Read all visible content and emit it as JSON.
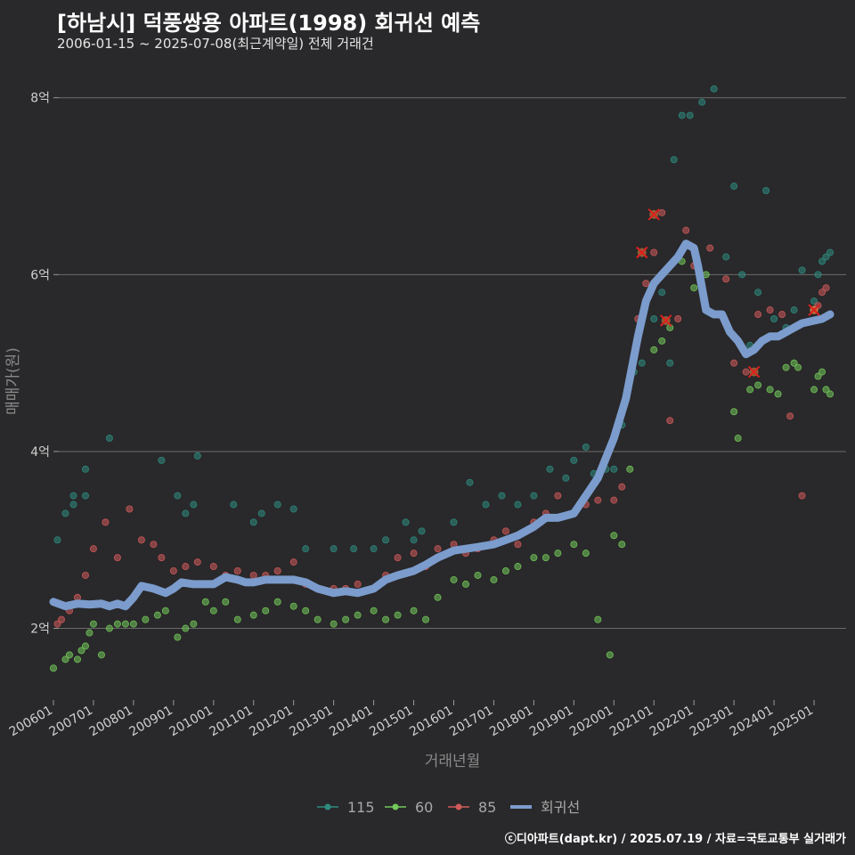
{
  "header": {
    "title": "[하남시] 덕풍쌍용 아파트(1998) 회귀선 예측",
    "subtitle": "2006-01-15 ~ 2025-07-08(최근계약일) 전체 거래건"
  },
  "credit": "ⓒ디아파트(dapt.kr) / 2025.07.19 / 자료=국토교통부 실거래가",
  "chart_data": {
    "type": "scatter",
    "title": "[하남시] 덕풍쌍용 아파트(1998) 회귀선 예측",
    "xlabel": "거래년월",
    "ylabel": "매매가(원)",
    "xlim": [
      2006.0,
      2025.8
    ],
    "ylim": [
      1.2,
      8.4
    ],
    "x_ticks": [
      {
        "value": 2006.0,
        "label": "200601"
      },
      {
        "value": 2007.0,
        "label": "200701"
      },
      {
        "value": 2008.0,
        "label": "200801"
      },
      {
        "value": 2009.0,
        "label": "200901"
      },
      {
        "value": 2010.0,
        "label": "201001"
      },
      {
        "value": 2011.0,
        "label": "201101"
      },
      {
        "value": 2012.0,
        "label": "201201"
      },
      {
        "value": 2013.0,
        "label": "201301"
      },
      {
        "value": 2014.0,
        "label": "201401"
      },
      {
        "value": 2015.0,
        "label": "201501"
      },
      {
        "value": 2016.0,
        "label": "201601"
      },
      {
        "value": 2017.0,
        "label": "201701"
      },
      {
        "value": 2018.0,
        "label": "201801"
      },
      {
        "value": 2019.0,
        "label": "201901"
      },
      {
        "value": 2020.0,
        "label": "202001"
      },
      {
        "value": 2021.0,
        "label": "202101"
      },
      {
        "value": 2022.0,
        "label": "202201"
      },
      {
        "value": 2023.0,
        "label": "202301"
      },
      {
        "value": 2024.0,
        "label": "202401"
      },
      {
        "value": 2025.0,
        "label": "202501"
      }
    ],
    "y_ticks": [
      {
        "value": 2,
        "label": "2억"
      },
      {
        "value": 4,
        "label": "4억"
      },
      {
        "value": 6,
        "label": "6억"
      },
      {
        "value": 8,
        "label": "8억"
      }
    ],
    "colors": {
      "115": "#2e8b7e",
      "60": "#72c95a",
      "85": "#d05a5a",
      "trend": "#7b9ccc"
    },
    "legend": [
      {
        "key": "115",
        "label": "115"
      },
      {
        "key": "60",
        "label": "60"
      },
      {
        "key": "85",
        "label": "85"
      },
      {
        "key": "trend",
        "label": "회귀선"
      }
    ],
    "series": [
      {
        "name": "115",
        "key": "115",
        "x": [
          2006.1,
          2006.3,
          2006.5,
          2006.5,
          2006.8,
          2006.8,
          2007.4,
          2008.7,
          2009.1,
          2009.3,
          2009.5,
          2009.6,
          2010.5,
          2011.0,
          2011.2,
          2011.6,
          2012.0,
          2012.3,
          2013.0,
          2013.5,
          2014.0,
          2014.3,
          2014.8,
          2015.0,
          2015.2,
          2016.0,
          2016.4,
          2016.8,
          2017.2,
          2017.6,
          2018.0,
          2018.4,
          2018.8,
          2019.0,
          2019.3,
          2019.5,
          2019.8,
          2020.0,
          2020.2,
          2020.5,
          2020.7,
          2021.0,
          2021.2,
          2021.4,
          2021.5,
          2021.7,
          2021.9,
          2022.2,
          2022.5,
          2022.8,
          2023.0,
          2023.2,
          2023.4,
          2023.6,
          2023.8,
          2024.0,
          2024.3,
          2024.5,
          2024.7,
          2025.0,
          2025.1,
          2025.2,
          2025.3,
          2025.4
        ],
        "y": [
          3.0,
          3.3,
          3.4,
          3.5,
          3.5,
          3.8,
          4.15,
          3.9,
          3.5,
          3.3,
          3.4,
          3.95,
          3.4,
          3.2,
          3.3,
          3.4,
          3.35,
          2.9,
          2.9,
          2.9,
          2.9,
          3.0,
          3.2,
          3.0,
          3.1,
          3.2,
          3.65,
          3.4,
          3.5,
          3.4,
          3.5,
          3.8,
          3.7,
          3.9,
          4.05,
          3.75,
          3.8,
          3.8,
          4.3,
          4.9,
          5.0,
          5.5,
          5.8,
          5.0,
          7.3,
          7.8,
          7.8,
          7.95,
          8.1,
          6.2,
          7.0,
          6.0,
          5.2,
          5.8,
          6.95,
          5.5,
          5.4,
          5.6,
          6.05,
          5.7,
          6.0,
          6.15,
          6.2,
          6.25
        ]
      },
      {
        "name": "60",
        "key": "60",
        "x": [
          2006.0,
          2006.3,
          2006.4,
          2006.6,
          2006.7,
          2006.8,
          2006.9,
          2007.0,
          2007.2,
          2007.4,
          2007.6,
          2007.8,
          2008.0,
          2008.3,
          2008.6,
          2008.8,
          2009.1,
          2009.3,
          2009.5,
          2009.8,
          2010.0,
          2010.3,
          2010.6,
          2011.0,
          2011.3,
          2011.6,
          2012.0,
          2012.3,
          2012.6,
          2013.0,
          2013.3,
          2013.6,
          2014.0,
          2014.3,
          2014.6,
          2015.0,
          2015.3,
          2015.6,
          2016.0,
          2016.3,
          2016.6,
          2017.0,
          2017.3,
          2017.6,
          2018.0,
          2018.3,
          2018.6,
          2019.0,
          2019.3,
          2019.6,
          2019.9,
          2020.0,
          2020.2,
          2020.4,
          2021.0,
          2021.2,
          2021.4,
          2021.7,
          2022.0,
          2022.3,
          2023.0,
          2023.1,
          2023.4,
          2023.6,
          2023.9,
          2024.1,
          2024.3,
          2024.5,
          2024.6,
          2025.0,
          2025.1,
          2025.2,
          2025.3,
          2025.4
        ],
        "y": [
          1.55,
          1.65,
          1.7,
          1.65,
          1.75,
          1.8,
          1.95,
          2.05,
          1.7,
          2.0,
          2.05,
          2.05,
          2.05,
          2.1,
          2.15,
          2.2,
          1.9,
          2.0,
          2.05,
          2.3,
          2.2,
          2.3,
          2.1,
          2.15,
          2.2,
          2.3,
          2.25,
          2.2,
          2.1,
          2.05,
          2.1,
          2.15,
          2.2,
          2.1,
          2.15,
          2.2,
          2.1,
          2.35,
          2.55,
          2.5,
          2.6,
          2.55,
          2.65,
          2.7,
          2.8,
          2.8,
          2.85,
          2.95,
          2.85,
          2.1,
          1.7,
          3.05,
          2.95,
          3.8,
          5.15,
          5.25,
          5.4,
          6.15,
          5.85,
          6.0,
          4.45,
          4.15,
          4.7,
          4.75,
          4.7,
          4.65,
          4.95,
          5.0,
          4.95,
          4.7,
          4.85,
          4.9,
          4.7,
          4.65
        ]
      },
      {
        "name": "85",
        "key": "85",
        "x": [
          2006.1,
          2006.2,
          2006.4,
          2006.6,
          2006.8,
          2007.0,
          2007.3,
          2007.6,
          2007.9,
          2008.2,
          2008.5,
          2008.7,
          2009.0,
          2009.3,
          2009.6,
          2010.0,
          2010.3,
          2010.6,
          2011.0,
          2011.3,
          2011.6,
          2012.0,
          2012.3,
          2012.6,
          2013.0,
          2013.3,
          2013.6,
          2014.0,
          2014.3,
          2014.6,
          2015.0,
          2015.3,
          2015.6,
          2016.0,
          2016.3,
          2016.6,
          2017.0,
          2017.3,
          2017.6,
          2018.0,
          2018.3,
          2018.6,
          2019.0,
          2019.3,
          2019.6,
          2020.0,
          2020.2,
          2020.4,
          2020.6,
          2020.8,
          2021.0,
          2021.2,
          2021.4,
          2021.6,
          2021.8,
          2022.0,
          2022.4,
          2022.8,
          2023.0,
          2023.3,
          2023.6,
          2023.9,
          2024.2,
          2024.4,
          2024.7,
          2025.0,
          2025.1,
          2025.2,
          2025.3
        ],
        "y": [
          2.05,
          2.1,
          2.2,
          2.35,
          2.6,
          2.9,
          3.2,
          2.8,
          3.35,
          3.0,
          2.95,
          2.8,
          2.65,
          2.7,
          2.75,
          2.7,
          2.6,
          2.65,
          2.6,
          2.6,
          2.65,
          2.75,
          2.5,
          2.45,
          2.45,
          2.45,
          2.5,
          2.45,
          2.6,
          2.8,
          2.85,
          2.7,
          2.9,
          2.95,
          2.85,
          2.9,
          3.0,
          3.1,
          2.95,
          3.2,
          3.3,
          3.5,
          3.3,
          3.4,
          3.45,
          3.45,
          3.6,
          4.8,
          5.5,
          5.9,
          6.25,
          6.7,
          4.35,
          5.5,
          6.5,
          6.1,
          6.3,
          5.95,
          5.0,
          4.9,
          5.55,
          5.6,
          5.55,
          4.4,
          3.5,
          5.6,
          5.65,
          5.8,
          5.85
        ]
      }
    ],
    "trend": {
      "name": "회귀선",
      "x": [
        2006.0,
        2006.3,
        2006.6,
        2006.9,
        2007.2,
        2007.4,
        2007.6,
        2007.8,
        2008.0,
        2008.2,
        2008.5,
        2008.8,
        2009.0,
        2009.2,
        2009.5,
        2009.8,
        2010.0,
        2010.3,
        2010.6,
        2010.8,
        2011.0,
        2011.3,
        2011.6,
        2012.0,
        2012.3,
        2012.6,
        2013.0,
        2013.3,
        2013.6,
        2014.0,
        2014.3,
        2014.6,
        2015.0,
        2015.3,
        2015.6,
        2016.0,
        2016.3,
        2016.6,
        2017.0,
        2017.3,
        2017.6,
        2018.0,
        2018.3,
        2018.6,
        2019.0,
        2019.3,
        2019.6,
        2020.0,
        2020.3,
        2020.6,
        2020.8,
        2021.0,
        2021.2,
        2021.4,
        2021.6,
        2021.8,
        2022.0,
        2022.1,
        2022.2,
        2022.3,
        2022.5,
        2022.7,
        2022.9,
        2023.1,
        2023.3,
        2023.5,
        2023.7,
        2023.9,
        2024.1,
        2024.3,
        2024.5,
        2024.7,
        2025.0,
        2025.2,
        2025.4
      ],
      "y": [
        2.3,
        2.25,
        2.28,
        2.27,
        2.28,
        2.25,
        2.28,
        2.25,
        2.35,
        2.48,
        2.45,
        2.4,
        2.45,
        2.52,
        2.5,
        2.5,
        2.5,
        2.58,
        2.55,
        2.52,
        2.52,
        2.55,
        2.55,
        2.55,
        2.52,
        2.45,
        2.4,
        2.42,
        2.4,
        2.45,
        2.55,
        2.6,
        2.65,
        2.72,
        2.8,
        2.88,
        2.9,
        2.92,
        2.95,
        3.0,
        3.05,
        3.15,
        3.25,
        3.25,
        3.3,
        3.5,
        3.7,
        4.15,
        4.6,
        5.3,
        5.7,
        5.9,
        6.0,
        6.1,
        6.2,
        6.35,
        6.3,
        6.1,
        5.85,
        5.6,
        5.55,
        5.55,
        5.35,
        5.25,
        5.1,
        5.15,
        5.25,
        5.3,
        5.3,
        5.35,
        5.4,
        5.45,
        5.48,
        5.5,
        5.55
      ]
    },
    "highlights": {
      "x": [
        2020.7,
        2021.0,
        2021.3,
        2023.5,
        2025.0
      ],
      "y": [
        6.25,
        6.68,
        5.48,
        4.9,
        5.6
      ]
    }
  }
}
